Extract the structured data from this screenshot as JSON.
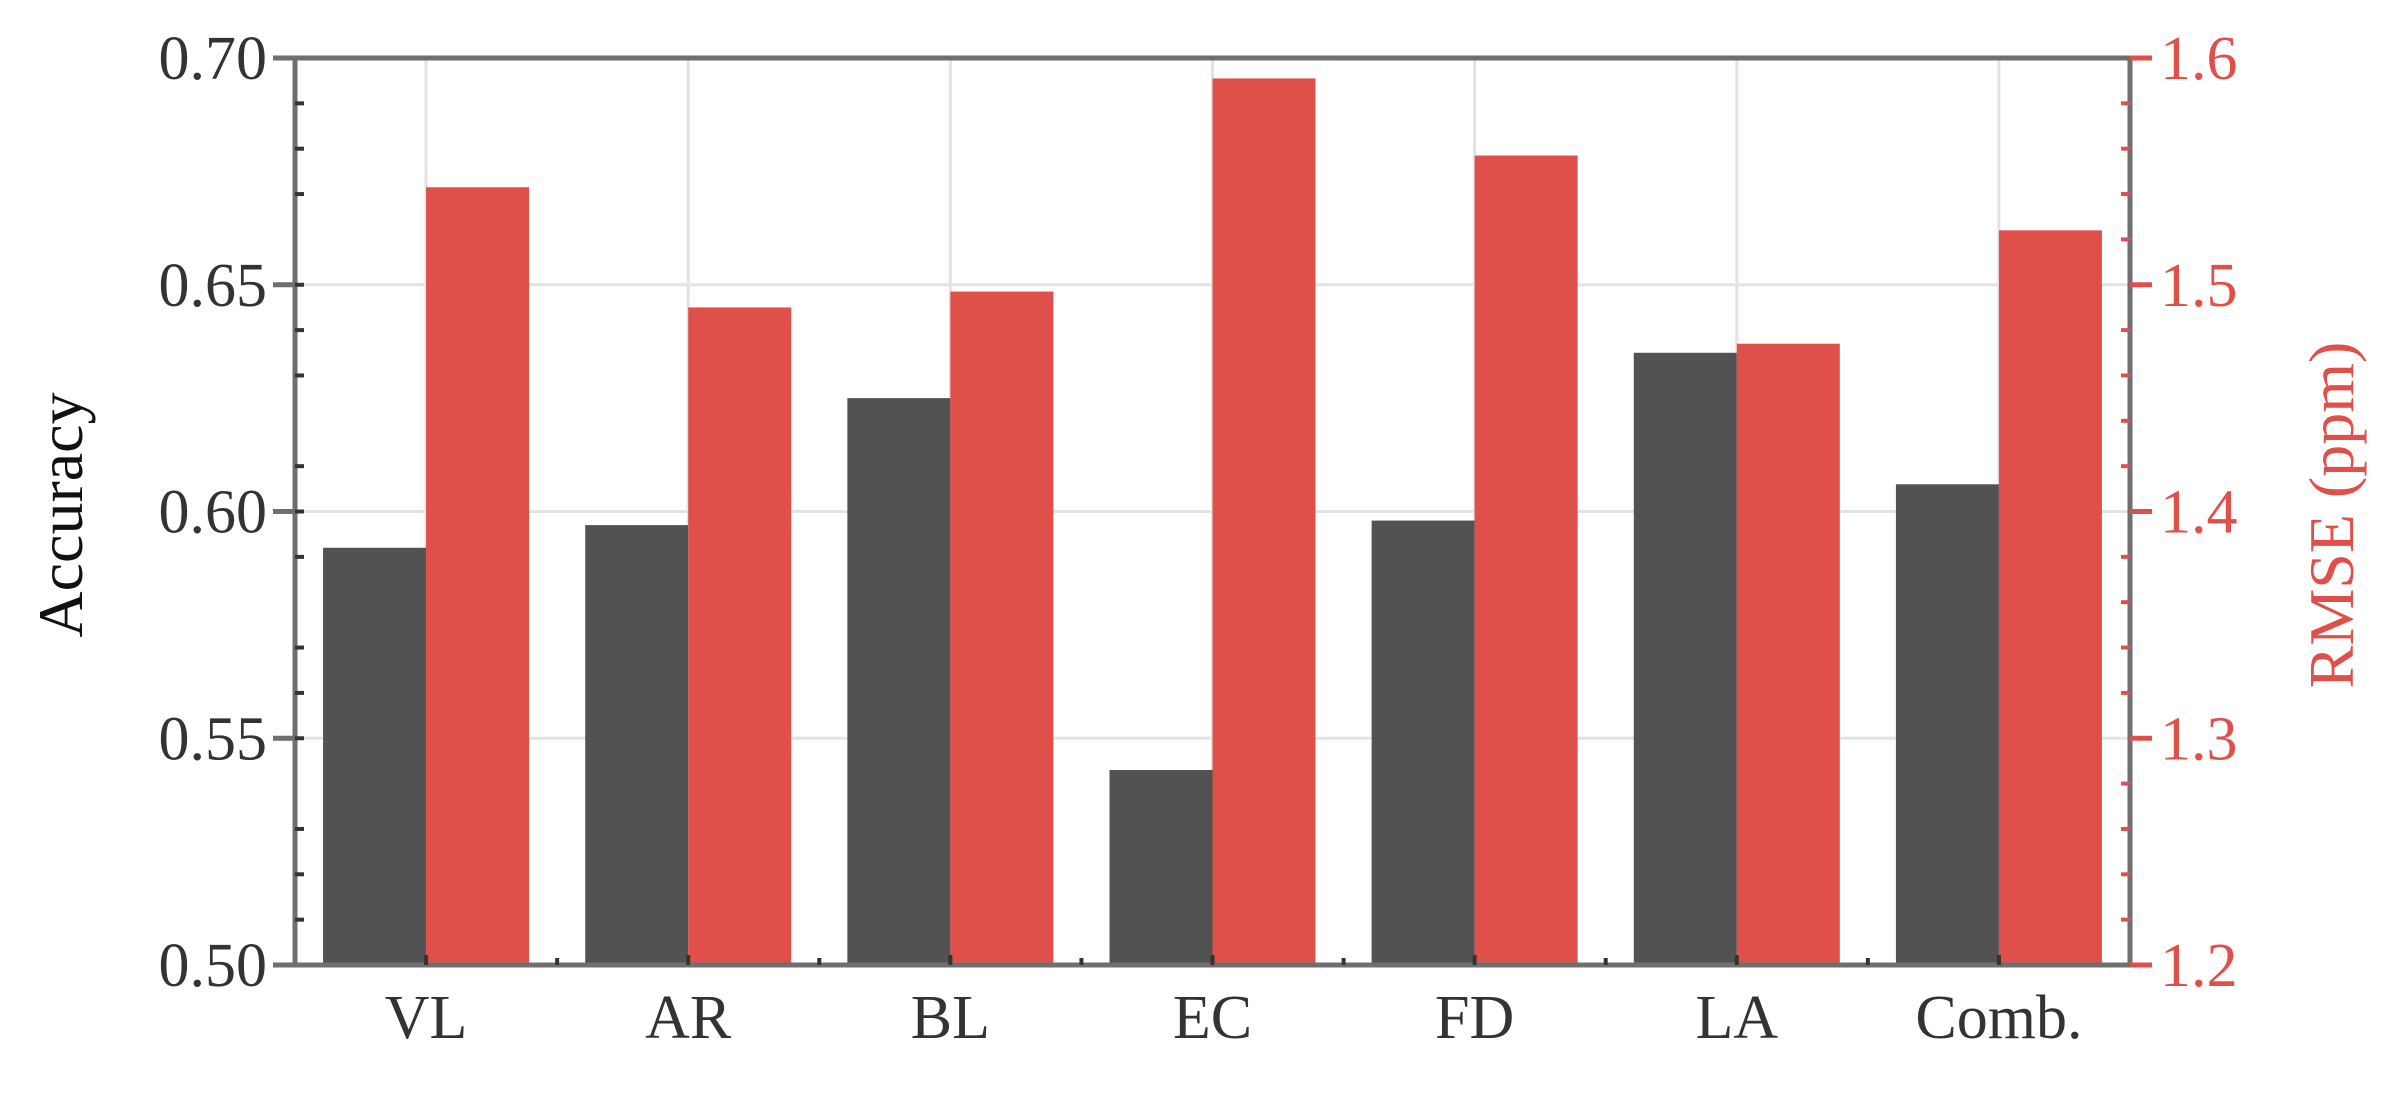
{
  "chart_data": {
    "type": "bar",
    "categories": [
      "VL",
      "AR",
      "BL",
      "EC",
      "FD",
      "LA",
      "Comb."
    ],
    "series": [
      {
        "axis": "left",
        "values": [
          0.592,
          0.597,
          0.625,
          0.543,
          0.598,
          0.635,
          0.606
        ]
      },
      {
        "axis": "right",
        "values": [
          1.543,
          1.49,
          1.497,
          1.591,
          1.557,
          1.474,
          1.524
        ]
      }
    ],
    "ylabel": "Accuracy",
    "ylabel_right": "RMSE (ppm)",
    "ylim": [
      0.5,
      0.7
    ],
    "ylim_right": [
      1.2,
      1.6
    ],
    "yticks": [
      "0.50",
      "0.55",
      "0.60",
      "0.65",
      "0.70"
    ],
    "yticks_right": [
      "1.2",
      "1.3",
      "1.4",
      "1.5",
      "1.6"
    ],
    "grid": true,
    "colors": {
      "left": "#525252",
      "right": "#E0504A",
      "axis": "#6f6f6f",
      "grid": "#e3e3e3",
      "text": "#333333"
    }
  }
}
